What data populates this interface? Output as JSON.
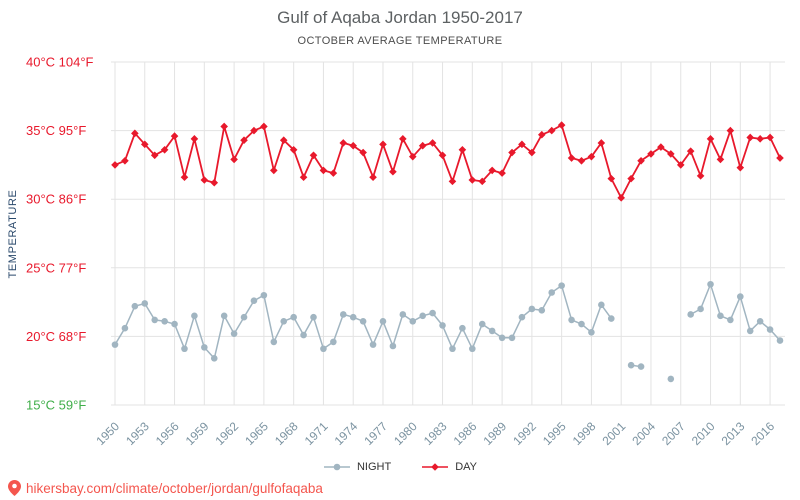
{
  "footer": {
    "url": "hikersbay.com/climate/october/jordan/gulfofaqaba"
  },
  "colors": {
    "day": "#e8192c",
    "night": "#a1b5c1",
    "grid": "#e3e3e3",
    "y_tick_red": "#e8192c",
    "y_tick_green": "#3fae49",
    "x_tick": "#7b93a1",
    "title": "#5d6163",
    "axis_label": "#29486b",
    "footer": "#f4564e"
  },
  "chart_data": {
    "type": "line",
    "title": "Gulf of Aqaba Jordan 1950-2017",
    "subtitle": "OCTOBER AVERAGE TEMPERATURE",
    "ylabel": "TEMPERATURE",
    "xlabel": "",
    "ylim": [
      15,
      40
    ],
    "xlim": [
      1950,
      2017
    ],
    "grid": true,
    "legend_position": "bottom",
    "years": [
      1950,
      1951,
      1952,
      1953,
      1954,
      1955,
      1956,
      1957,
      1958,
      1959,
      1960,
      1961,
      1962,
      1963,
      1964,
      1965,
      1966,
      1967,
      1968,
      1969,
      1970,
      1971,
      1972,
      1973,
      1974,
      1975,
      1976,
      1977,
      1978,
      1979,
      1980,
      1981,
      1982,
      1983,
      1984,
      1985,
      1986,
      1987,
      1988,
      1989,
      1990,
      1991,
      1992,
      1993,
      1994,
      1995,
      1996,
      1997,
      1998,
      1999,
      2000,
      2001,
      2002,
      2003,
      2004,
      2005,
      2006,
      2007,
      2008,
      2009,
      2010,
      2011,
      2012,
      2013,
      2014,
      2015,
      2016,
      2017
    ],
    "x_ticks": [
      1950,
      1953,
      1956,
      1959,
      1962,
      1965,
      1968,
      1971,
      1974,
      1977,
      1980,
      1983,
      1986,
      1989,
      1992,
      1995,
      1998,
      2001,
      2004,
      2007,
      2010,
      2013,
      2016
    ],
    "y_ticks": [
      {
        "value": 15,
        "label": "15°C 59°F",
        "color": "#3fae49"
      },
      {
        "value": 20,
        "label": "20°C 68°F",
        "color": "#e8192c"
      },
      {
        "value": 25,
        "label": "25°C 77°F",
        "color": "#e8192c"
      },
      {
        "value": 30,
        "label": "30°C 86°F",
        "color": "#e8192c"
      },
      {
        "value": 35,
        "label": "35°C 95°F",
        "color": "#e8192c"
      },
      {
        "value": 40,
        "label": "40°C 104°F",
        "color": "#e8192c"
      }
    ],
    "series": [
      {
        "name": "NIGHT",
        "color": "#a1b5c1",
        "marker": "circle",
        "values": [
          19.4,
          20.6,
          22.2,
          22.4,
          21.2,
          21.1,
          20.9,
          19.1,
          21.5,
          19.2,
          18.4,
          21.5,
          20.2,
          21.4,
          22.6,
          23.0,
          19.6,
          21.1,
          21.4,
          20.1,
          21.4,
          19.1,
          19.6,
          21.6,
          21.4,
          21.1,
          19.4,
          21.1,
          19.3,
          21.6,
          21.1,
          21.5,
          21.7,
          20.8,
          19.1,
          20.6,
          19.1,
          20.9,
          20.4,
          19.9,
          19.9,
          21.4,
          22.0,
          21.9,
          23.2,
          23.7,
          21.2,
          20.9,
          20.3,
          22.3,
          21.3,
          null,
          17.9,
          17.8,
          null,
          null,
          16.9,
          null,
          21.6,
          22.0,
          23.8,
          21.5,
          21.2,
          22.9,
          20.4,
          21.1,
          20.5,
          19.7
        ]
      },
      {
        "name": "DAY",
        "color": "#e8192c",
        "marker": "diamond",
        "values": [
          32.5,
          32.8,
          34.8,
          34.0,
          33.2,
          33.6,
          34.6,
          31.6,
          34.4,
          31.4,
          31.2,
          35.3,
          32.9,
          34.3,
          35.0,
          35.3,
          32.1,
          34.3,
          33.6,
          31.6,
          33.2,
          32.1,
          31.9,
          34.1,
          33.9,
          33.4,
          31.6,
          34.0,
          32.0,
          34.4,
          33.1,
          33.9,
          34.1,
          33.2,
          31.3,
          33.6,
          31.4,
          31.3,
          32.1,
          31.9,
          33.4,
          34.0,
          33.4,
          34.7,
          35.0,
          35.4,
          33.0,
          32.8,
          33.1,
          34.1,
          31.5,
          30.1,
          31.5,
          32.8,
          33.3,
          33.8,
          33.3,
          32.5,
          33.5,
          31.7,
          34.4,
          32.9,
          35.0,
          32.3,
          34.5,
          34.4,
          34.5,
          33.0
        ]
      }
    ]
  }
}
